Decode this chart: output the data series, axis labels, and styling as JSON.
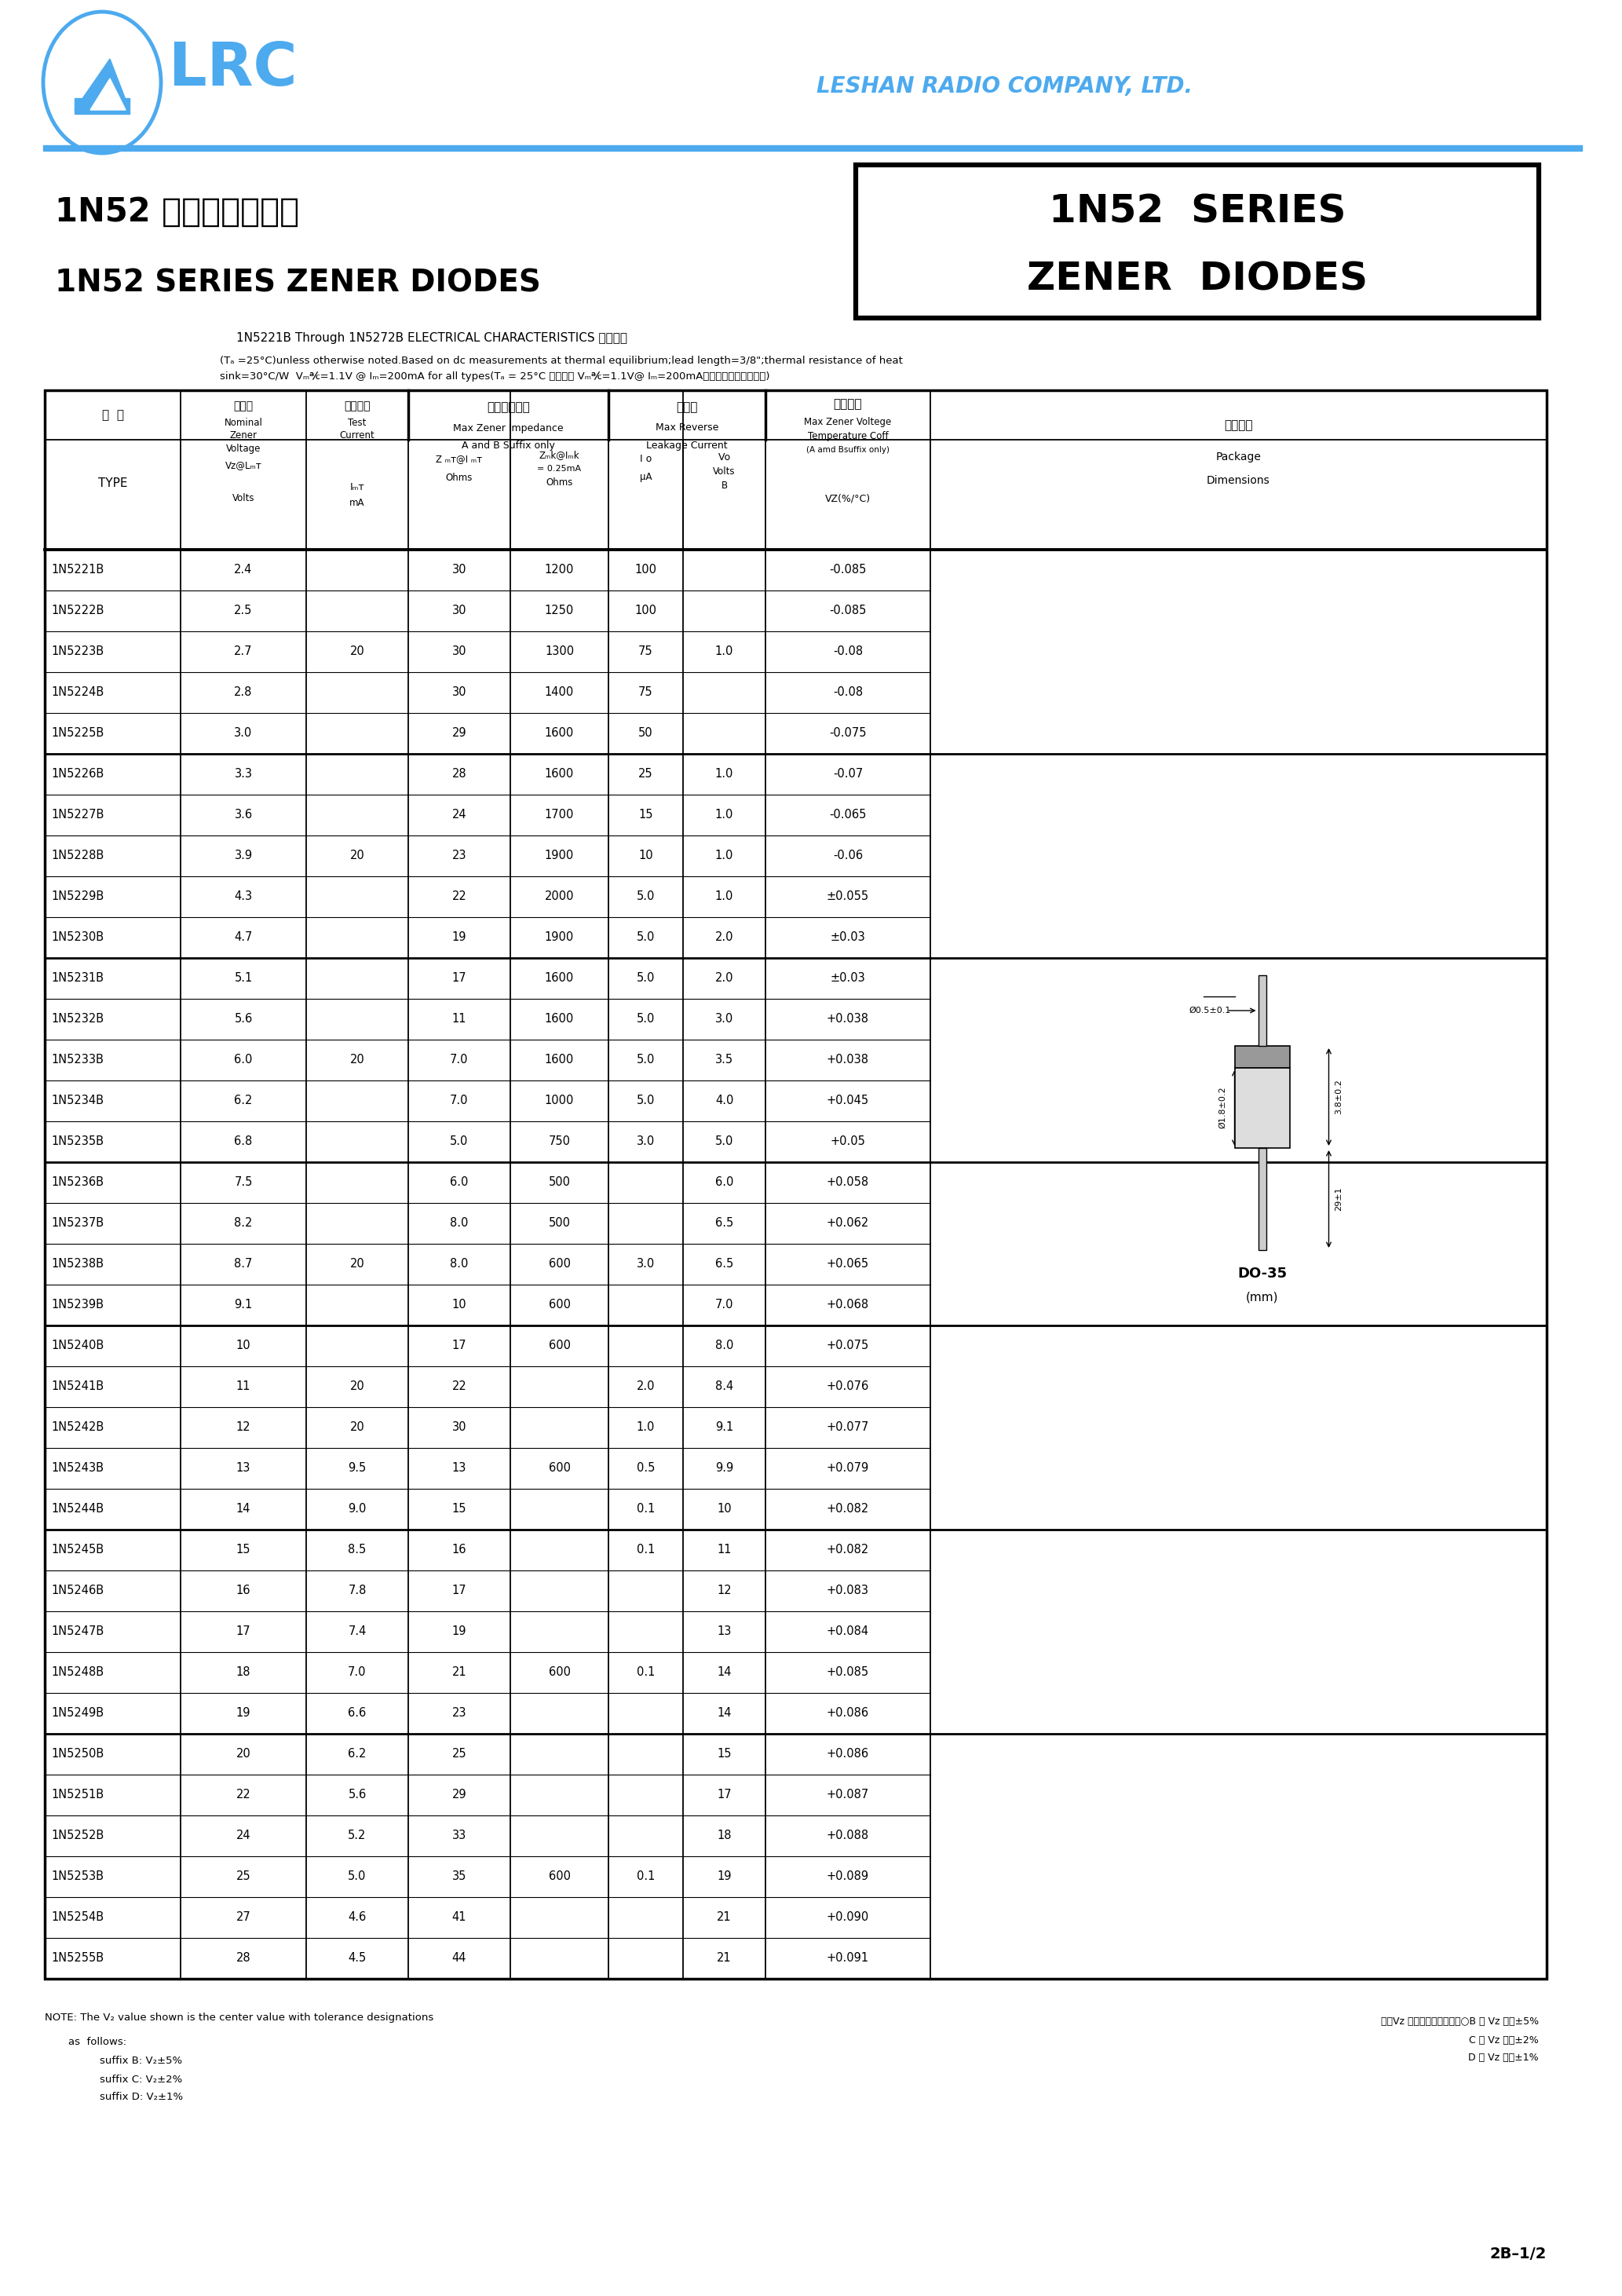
{
  "title_chinese": "1N52 系列稳压二极管",
  "title_english": "1N52 SERIES ZENER DIODES",
  "box_title_line1": "1N52  SERIES",
  "box_title_line2": "ZENER  DIODES",
  "company": "LESHAN RADIO COMPANY, LTD.",
  "subtitle": "1N5221B Through 1N5272B ELECTRICAL CHARACTERISTICS 电性参数",
  "subtitle2a": "(Tₐ =25°C)unless otherwise noted.Based on dc measurements at thermal equilibrium;lead length=3/8\";thermal resistance of heat",
  "subtitle2b": "sink=30°C/W  Vₘ℀=1.1V @ Iₘ=200mA for all types(Tₐ = 25°C 所有型号 Vₘ℀=1.1V@ Iₘ=200mA，其它特别说明除外。)",
  "table_data": [
    [
      "1N5221B",
      "2.4",
      "",
      "30",
      "1200",
      "100",
      "",
      "-0.085"
    ],
    [
      "1N5222B",
      "2.5",
      "",
      "30",
      "1250",
      "100",
      "",
      "-0.085"
    ],
    [
      "1N5223B",
      "2.7",
      "20",
      "30",
      "1300",
      "75",
      "1.0",
      "-0.08"
    ],
    [
      "1N5224B",
      "2.8",
      "",
      "30",
      "1400",
      "75",
      "",
      "-0.08"
    ],
    [
      "1N5225B",
      "3.0",
      "",
      "29",
      "1600",
      "50",
      "",
      "-0.075"
    ],
    [
      "1N5226B",
      "3.3",
      "",
      "28",
      "1600",
      "25",
      "1.0",
      "-0.07"
    ],
    [
      "1N5227B",
      "3.6",
      "",
      "24",
      "1700",
      "15",
      "1.0",
      "-0.065"
    ],
    [
      "1N5228B",
      "3.9",
      "20",
      "23",
      "1900",
      "10",
      "1.0",
      "-0.06"
    ],
    [
      "1N5229B",
      "4.3",
      "",
      "22",
      "2000",
      "5.0",
      "1.0",
      "±0.055"
    ],
    [
      "1N5230B",
      "4.7",
      "",
      "19",
      "1900",
      "5.0",
      "2.0",
      "±0.03"
    ],
    [
      "1N5231B",
      "5.1",
      "",
      "17",
      "1600",
      "5.0",
      "2.0",
      "±0.03"
    ],
    [
      "1N5232B",
      "5.6",
      "",
      "11",
      "1600",
      "5.0",
      "3.0",
      "+0.038"
    ],
    [
      "1N5233B",
      "6.0",
      "20",
      "7.0",
      "1600",
      "5.0",
      "3.5",
      "+0.038"
    ],
    [
      "1N5234B",
      "6.2",
      "",
      "7.0",
      "1000",
      "5.0",
      "4.0",
      "+0.045"
    ],
    [
      "1N5235B",
      "6.8",
      "",
      "5.0",
      "750",
      "3.0",
      "5.0",
      "+0.05"
    ],
    [
      "1N5236B",
      "7.5",
      "",
      "6.0",
      "500",
      "",
      "6.0",
      "+0.058"
    ],
    [
      "1N5237B",
      "8.2",
      "",
      "8.0",
      "500",
      "",
      "6.5",
      "+0.062"
    ],
    [
      "1N5238B",
      "8.7",
      "20",
      "8.0",
      "600",
      "3.0",
      "6.5",
      "+0.065"
    ],
    [
      "1N5239B",
      "9.1",
      "",
      "10",
      "600",
      "",
      "7.0",
      "+0.068"
    ],
    [
      "1N5240B",
      "10",
      "",
      "17",
      "600",
      "",
      "8.0",
      "+0.075"
    ],
    [
      "1N5241B",
      "11",
      "20",
      "22",
      "",
      "2.0",
      "8.4",
      "+0.076"
    ],
    [
      "1N5242B",
      "12",
      "20",
      "30",
      "",
      "1.0",
      "9.1",
      "+0.077"
    ],
    [
      "1N5243B",
      "13",
      "9.5",
      "13",
      "600",
      "0.5",
      "9.9",
      "+0.079"
    ],
    [
      "1N5244B",
      "14",
      "9.0",
      "15",
      "",
      "0.1",
      "10",
      "+0.082"
    ],
    [
      "1N5245B",
      "15",
      "8.5",
      "16",
      "",
      "0.1",
      "11",
      "+0.082"
    ],
    [
      "1N5246B",
      "16",
      "7.8",
      "17",
      "",
      "",
      "12",
      "+0.083"
    ],
    [
      "1N5247B",
      "17",
      "7.4",
      "19",
      "",
      "",
      "13",
      "+0.084"
    ],
    [
      "1N5248B",
      "18",
      "7.0",
      "21",
      "600",
      "0.1",
      "14",
      "+0.085"
    ],
    [
      "1N5249B",
      "19",
      "6.6",
      "23",
      "",
      "",
      "14",
      "+0.086"
    ],
    [
      "1N5250B",
      "20",
      "6.2",
      "25",
      "",
      "",
      "15",
      "+0.086"
    ],
    [
      "1N5251B",
      "22",
      "5.6",
      "29",
      "",
      "",
      "17",
      "+0.087"
    ],
    [
      "1N5252B",
      "24",
      "5.2",
      "33",
      "",
      "",
      "18",
      "+0.088"
    ],
    [
      "1N5253B",
      "25",
      "5.0",
      "35",
      "600",
      "0.1",
      "19",
      "+0.089"
    ],
    [
      "1N5254B",
      "27",
      "4.6",
      "41",
      "",
      "",
      "21",
      "+0.090"
    ],
    [
      "1N5255B",
      "28",
      "4.5",
      "44",
      "",
      "",
      "21",
      "+0.091"
    ]
  ],
  "group_separators": [
    5,
    10,
    15,
    19,
    24,
    29
  ],
  "blue_color": "#4DAAEE",
  "bg_color": "#FFFFFF"
}
